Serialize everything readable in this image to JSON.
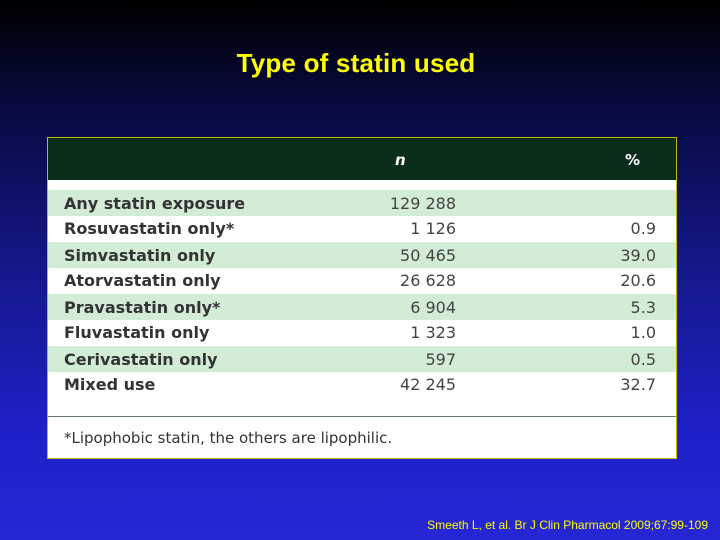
{
  "slide": {
    "title": "Type of statin used",
    "citation": "Smeeth L, et al. Br J Clin Pharmacol 2009;67:99-109"
  },
  "table": {
    "headers": {
      "label": "",
      "n": "n",
      "pct": "%"
    },
    "rows": [
      {
        "label": "Any statin exposure",
        "n": "129 288",
        "pct": ""
      },
      {
        "label": "Rosuvastatin only*",
        "n": "1 126",
        "pct": "0.9"
      },
      {
        "label": "Simvastatin only",
        "n": "50 465",
        "pct": "39.0"
      },
      {
        "label": "Atorvastatin only",
        "n": "26 628",
        "pct": "20.6"
      },
      {
        "label": "Pravastatin only*",
        "n": "6 904",
        "pct": "5.3"
      },
      {
        "label": "Fluvastatin only",
        "n": "1 323",
        "pct": "1.0"
      },
      {
        "label": "Cerivastatin only",
        "n": "597",
        "pct": "0.5"
      },
      {
        "label": "Mixed use",
        "n": "42 245",
        "pct": "32.7"
      }
    ],
    "footnote": "*Lipophobic statin, the others are lipophilic."
  },
  "colors": {
    "title": "#ffff00",
    "header_bg": "#0b2e1a",
    "row_shade": "#d2ecd6",
    "background_top": "#000000",
    "background_bottom": "#2626d6"
  }
}
